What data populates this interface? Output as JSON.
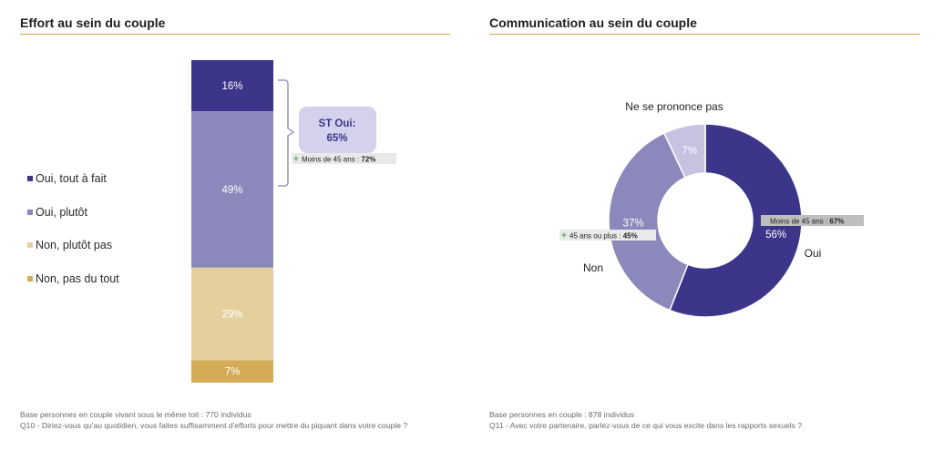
{
  "left": {
    "title": "Effort au sein du couple",
    "footnote_base": "Base personnes en couple vivant sous le même toit : 770 individus",
    "footnote_question": "Q10 - Diriez-vous qu'au quotidien, vous faites suffisamment d'efforts pour mettre du piquant dans votre couple ?",
    "callout_label": "ST Oui:",
    "callout_value": "65%",
    "sub_note_prefix": "Moins de 45 ans : ",
    "sub_note_value": "72%"
  },
  "right": {
    "title": "Communication au sein du couple",
    "footnote_base": "Base personnes en couple : 878 individus",
    "footnote_question": "Q11 - Avec votre partenaire, parlez-vous de ce qui vous excite dans les rapports sexuels ?",
    "note_oui_prefix": "Moins de 45 ans : ",
    "note_oui_value": "67%",
    "note_non_prefix": "45 ans ou plus : ",
    "note_non_value": "45%"
  },
  "plus_symbol": "+",
  "colors": {
    "dark_purple": "#3b3689",
    "mid_purple": "#8b88bb",
    "light_purple": "#c5c3e0",
    "light_beige": "#e6cf9f",
    "gold": "#d4ab57",
    "accent_rule": "#c9a548",
    "callout_bg": "#d3d1ec",
    "note_bg": "#e9e9e9"
  },
  "chart_data": [
    {
      "type": "bar",
      "stacked": true,
      "title": "Effort au sein du couple",
      "series": [
        {
          "name": "Oui, tout à fait",
          "value": 16,
          "label": "16%",
          "color": "#3b3689"
        },
        {
          "name": "Oui, plutôt",
          "value": 49,
          "label": "49%",
          "color": "#8b88bb"
        },
        {
          "name": "Non, plutôt pas",
          "value": 29,
          "label": "29%",
          "color": "#e6cf9f"
        },
        {
          "name": "Non, pas du tout",
          "value": 7,
          "label": "7%",
          "color": "#d4ab57"
        }
      ],
      "legend_position": "left"
    },
    {
      "type": "pie",
      "donut": true,
      "title": "Communication au sein du couple",
      "slices": [
        {
          "name": "Oui",
          "value": 56,
          "label": "56%",
          "color": "#3b3689"
        },
        {
          "name": "Non",
          "value": 37,
          "label": "37%",
          "color": "#8b88bb"
        },
        {
          "name": "Ne se prononce pas",
          "value": 7,
          "label": "7%",
          "color": "#c5c3e0"
        }
      ]
    }
  ]
}
